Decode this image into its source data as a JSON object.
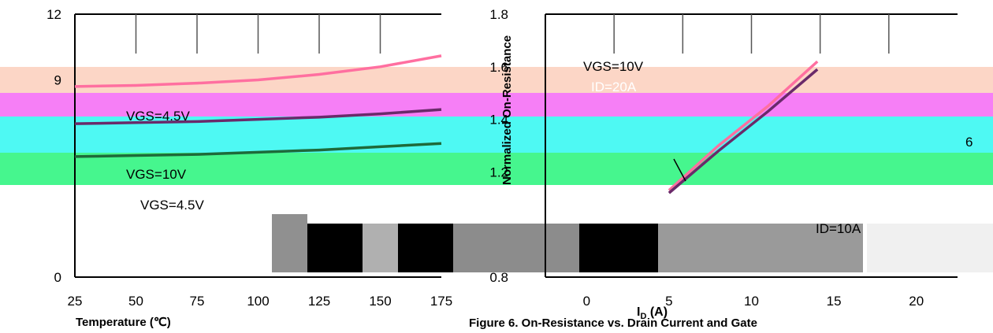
{
  "colors": {
    "band_peach": "#fcd6c6",
    "band_magenta": "#f67ff6",
    "band_cyan": "#4ef9f3",
    "band_green": "#46f68e",
    "curve_dark": "#6a2a6a",
    "curve_green": "#1e6a3a",
    "curve_pink": "#ff6fa0"
  },
  "captions": {
    "left_xlabel": "Temperature (℃)",
    "right_xlabel": "I",
    "right_xlabel_sub": "D",
    "right_xlabel_unit": " (A)",
    "figure_caption": "Figure 6. On-Resistance vs. Drain Current and Gate"
  },
  "chart_data": [
    {
      "type": "line",
      "title": "",
      "xlabel": "Temperature (℃)",
      "ylabel": "",
      "x_ticks": [
        "25",
        "50",
        "75",
        "100",
        "125",
        "150",
        "175"
      ],
      "y_ticks": [
        "0",
        "9",
        "12"
      ],
      "xlim": [
        25,
        175
      ],
      "ylim": [
        0,
        12
      ],
      "grid": true,
      "annotations": [
        "VGS=4.5V",
        "VGS=10V",
        "VGS=4.5V"
      ],
      "series": [
        {
          "x": [
            25,
            50,
            75,
            100,
            125,
            150,
            175
          ],
          "values": [
            8.7,
            8.75,
            8.85,
            9.0,
            9.25,
            9.6,
            10.1
          ]
        },
        {
          "x": [
            25,
            50,
            75,
            100,
            125,
            150,
            175
          ],
          "values": [
            7.0,
            7.05,
            7.1,
            7.2,
            7.3,
            7.45,
            7.65
          ]
        },
        {
          "x": [
            25,
            50,
            75,
            100,
            125,
            150,
            175
          ],
          "values": [
            5.5,
            5.55,
            5.6,
            5.7,
            5.8,
            5.95,
            6.1
          ]
        }
      ]
    },
    {
      "type": "line",
      "title": "",
      "xlabel": "ID (A)",
      "ylabel": "Normalized On-Resistance",
      "x_ticks": [
        "0",
        "5",
        "10",
        "15",
        "20"
      ],
      "y_ticks": [
        "0.8",
        "1.2",
        "1.4",
        "1.6",
        "1.8"
      ],
      "xlim": [
        -2.5,
        22.5
      ],
      "ylim": [
        0.8,
        1.8
      ],
      "grid": true,
      "annotations": [
        "VGS=10V",
        "ID=20A",
        "ID=10A",
        "6"
      ],
      "series": [
        {
          "x": [
            5,
            8,
            11,
            14
          ],
          "values": [
            1.13,
            1.3,
            1.45,
            1.62
          ]
        },
        {
          "x": [
            5,
            8,
            11,
            14
          ],
          "values": [
            1.12,
            1.28,
            1.43,
            1.59
          ]
        }
      ]
    }
  ]
}
